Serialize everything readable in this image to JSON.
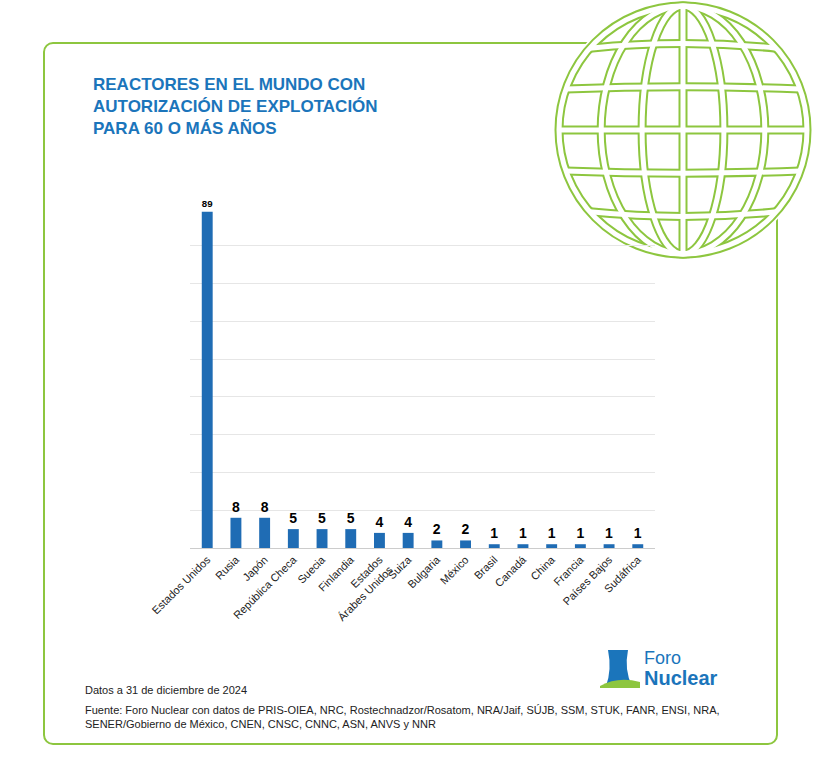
{
  "chart_data": {
    "type": "bar",
    "title": "REACTORES EN EL MUNDO CON AUTORIZACIÓN DE EXPLOTACIÓN PARA 60 O MÁS AÑOS",
    "categories": [
      "Estados Unidos",
      "Rusia",
      "Japón",
      "República Checa",
      "Suecia",
      "Finlandia",
      "Estados Árabes Unidos",
      "Suiza",
      "Bulgaria",
      "México",
      "Brasil",
      "Canadá",
      "China",
      "Francia",
      "Países Bajos",
      "Sudáfrica"
    ],
    "values": [
      89,
      8,
      8,
      5,
      5,
      5,
      4,
      4,
      2,
      2,
      1,
      1,
      1,
      1,
      1,
      1
    ],
    "color": "#1f6cb4",
    "ylim": [
      0,
      90
    ],
    "yticks": [
      0,
      10,
      20,
      30,
      40,
      50,
      60,
      70,
      80,
      90
    ],
    "grid": true,
    "data_labels": true,
    "tick_labels": "x"
  },
  "footer": {
    "date_note": "Datos a 31 de diciembre de 2024",
    "source": "Fuente: Foro Nuclear con datos de PRIS-OIEA, NRC, Rostechnadzor/Rosatom, NRA/Jaif, SÚJB, SSM, STUK, FANR, ENSI, NRA, SENER/Gobierno de México, CNEN, CNSC, CNNC, ASN, ANVS y NNR"
  },
  "logo": "Foro Nuclear"
}
